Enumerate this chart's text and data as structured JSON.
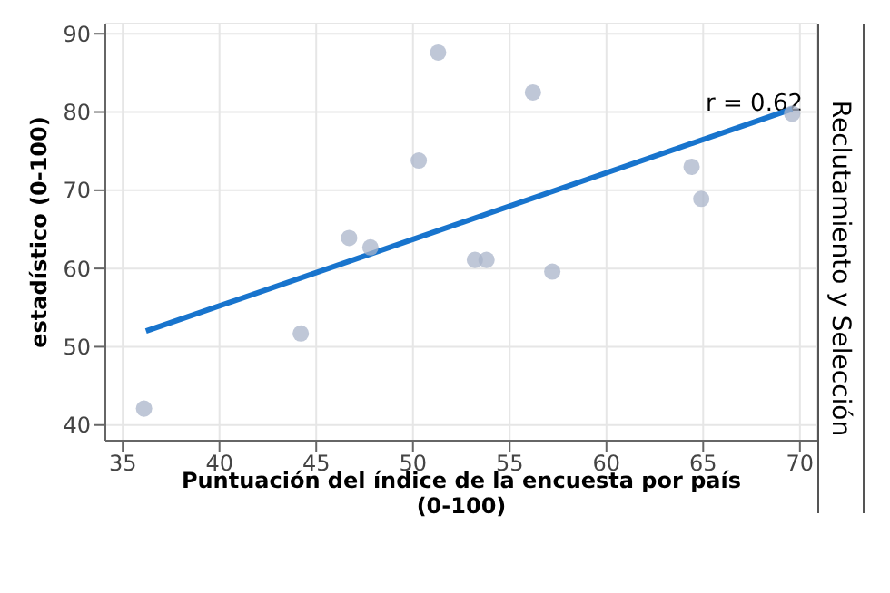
{
  "chart_data": {
    "type": "scatter",
    "xlabel": "Puntuación del índice de la encuesta por país\n(0-100)",
    "ylabel": "estadístico (0-100)",
    "annotations": [
      "r = 0.62",
      "Reclutamiento y Selección"
    ],
    "xlim": [
      34.1,
      70.9
    ],
    "ylim": [
      38,
      91.3
    ],
    "xticks": [
      35,
      40,
      45,
      50,
      55,
      60,
      65,
      70
    ],
    "yticks": [
      40,
      50,
      60,
      70,
      80,
      90
    ],
    "grid": true,
    "series": [
      {
        "color": "#a9b4c9",
        "marker": "circle",
        "x": [
          36.1,
          44.2,
          46.7,
          47.8,
          50.3,
          51.3,
          53.2,
          53.8,
          56.2,
          57.2,
          64.4,
          64.9,
          69.6
        ],
        "values": [
          42.1,
          51.7,
          63.9,
          62.7,
          73.8,
          87.6,
          61.1,
          61.1,
          82.5,
          59.6,
          73.0,
          68.9,
          79.8
        ]
      },
      {
        "type": "line",
        "color": "#1874cd",
        "x": [
          36.2,
          69.6
        ],
        "values": [
          52.0,
          80.4
        ]
      }
    ]
  }
}
